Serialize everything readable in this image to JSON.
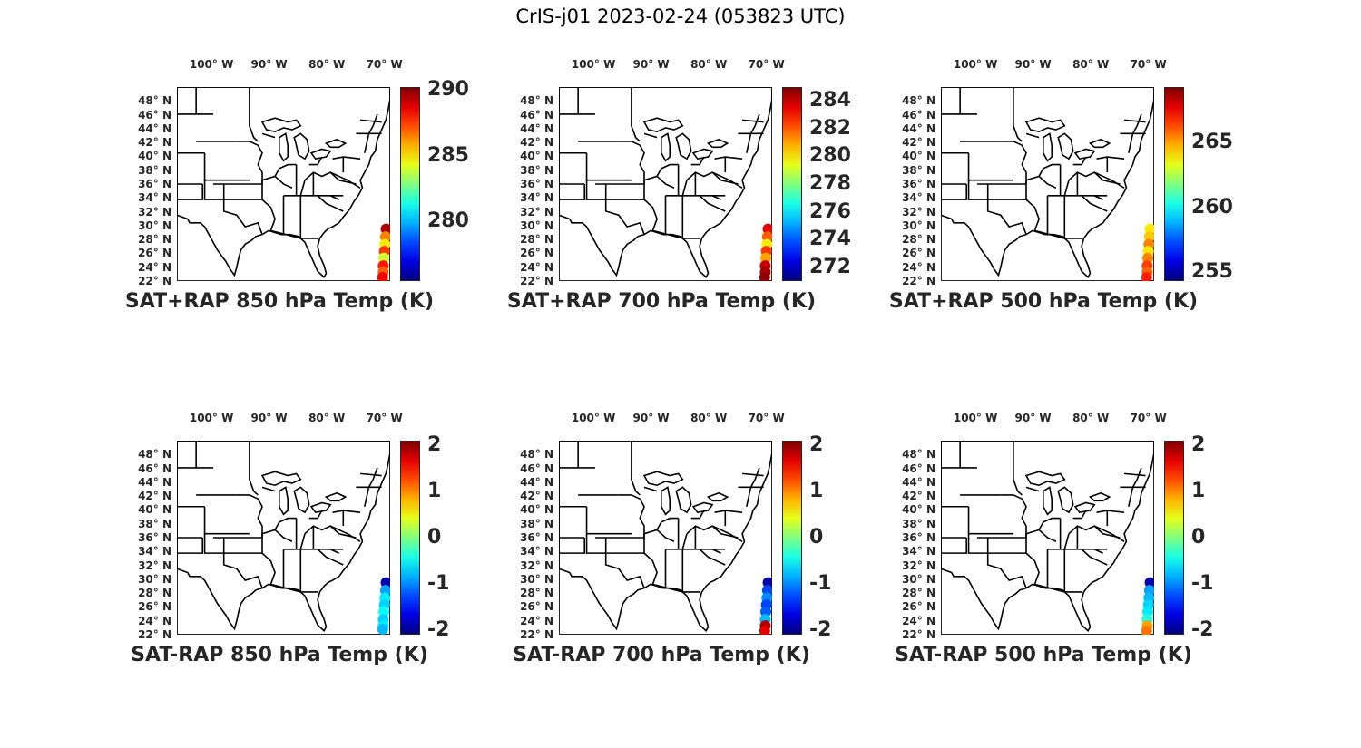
{
  "figure": {
    "title": "CrIS-j01 2023-02-24 (053823 UTC)"
  },
  "axes": {
    "lon_labels": [
      "100° W",
      "90° W",
      "80° W",
      "70° W"
    ],
    "lat_labels": [
      "48° N",
      "46° N",
      "44° N",
      "42° N",
      "40° N",
      "38° N",
      "36° N",
      "34° N",
      "32° N",
      "30° N",
      "28° N",
      "26° N",
      "24° N",
      "22° N"
    ],
    "lon_range": [
      -106,
      -69
    ],
    "lat_range": [
      22,
      50
    ],
    "colormap": "jet"
  },
  "panels": [
    {
      "title": "SAT+RAP 850 hPa Temp (K)",
      "colorbar": {
        "min": 275.5,
        "max": 290.2,
        "ticks": [
          "290",
          "285",
          "280"
        ],
        "tick_values": [
          290,
          285,
          280
        ]
      },
      "points": [
        {
          "lon": -69.7,
          "lat": 29.5,
          "value": 289.5
        },
        {
          "lon": -69.8,
          "lat": 28.4,
          "value": 286.5
        },
        {
          "lon": -69.9,
          "lat": 27.3,
          "value": 285.0
        },
        {
          "lon": -70.0,
          "lat": 26.3,
          "value": 287.5
        },
        {
          "lon": -70.1,
          "lat": 25.3,
          "value": 284.0
        },
        {
          "lon": -70.2,
          "lat": 24.2,
          "value": 288.0
        },
        {
          "lon": -70.2,
          "lat": 23.3,
          "value": 287.0
        },
        {
          "lon": -70.3,
          "lat": 22.3,
          "value": 288.5
        }
      ]
    },
    {
      "title": "SAT+RAP 700 hPa Temp (K)",
      "colorbar": {
        "min": 271.0,
        "max": 285.0,
        "ticks": [
          "284",
          "282",
          "280",
          "278",
          "276",
          "274",
          "272"
        ],
        "tick_values": [
          284,
          282,
          280,
          278,
          276,
          274,
          272
        ]
      },
      "points": [
        {
          "lon": -69.7,
          "lat": 29.5,
          "value": 283.5
        },
        {
          "lon": -69.8,
          "lat": 28.4,
          "value": 282.0
        },
        {
          "lon": -69.9,
          "lat": 27.3,
          "value": 280.0
        },
        {
          "lon": -70.0,
          "lat": 26.3,
          "value": 282.5
        },
        {
          "lon": -70.1,
          "lat": 25.3,
          "value": 281.0
        },
        {
          "lon": -70.2,
          "lat": 24.2,
          "value": 284.0
        },
        {
          "lon": -70.2,
          "lat": 23.3,
          "value": 284.5
        },
        {
          "lon": -70.3,
          "lat": 22.3,
          "value": 284.8
        }
      ]
    },
    {
      "title": "SAT+RAP 500 hPa Temp (K)",
      "colorbar": {
        "min": 254.3,
        "max": 269.3,
        "ticks": [
          "265",
          "260",
          "255"
        ],
        "tick_values": [
          265,
          260,
          255
        ]
      },
      "points": [
        {
          "lon": -69.7,
          "lat": 29.5,
          "value": 264.0
        },
        {
          "lon": -69.8,
          "lat": 28.4,
          "value": 264.5
        },
        {
          "lon": -69.9,
          "lat": 27.3,
          "value": 265.5
        },
        {
          "lon": -70.0,
          "lat": 26.3,
          "value": 264.0
        },
        {
          "lon": -70.1,
          "lat": 25.3,
          "value": 265.5
        },
        {
          "lon": -70.2,
          "lat": 24.2,
          "value": 266.5
        },
        {
          "lon": -70.2,
          "lat": 23.3,
          "value": 266.0
        },
        {
          "lon": -70.3,
          "lat": 22.3,
          "value": 267.0
        }
      ]
    },
    {
      "title": "SAT-RAP 850 hPa Temp (K)",
      "colorbar": {
        "min": -2.1,
        "max": 2.1,
        "ticks": [
          "2",
          "1",
          "0",
          "-1",
          "-2"
        ],
        "tick_values": [
          2,
          1,
          0,
          -1,
          -2
        ]
      },
      "points": [
        {
          "lon": -69.7,
          "lat": 29.5,
          "value": -1.9
        },
        {
          "lon": -69.8,
          "lat": 28.4,
          "value": -0.9
        },
        {
          "lon": -69.9,
          "lat": 27.3,
          "value": -0.6
        },
        {
          "lon": -70.0,
          "lat": 26.3,
          "value": -0.7
        },
        {
          "lon": -70.1,
          "lat": 25.3,
          "value": -0.5
        },
        {
          "lon": -70.2,
          "lat": 24.2,
          "value": -0.7
        },
        {
          "lon": -70.2,
          "lat": 23.3,
          "value": -0.6
        },
        {
          "lon": -70.3,
          "lat": 22.8,
          "value": -0.8
        }
      ]
    },
    {
      "title": "SAT-RAP 700 hPa Temp (K)",
      "colorbar": {
        "min": -2.1,
        "max": 2.1,
        "ticks": [
          "2",
          "1",
          "0",
          "-1",
          "-2"
        ],
        "tick_values": [
          2,
          1,
          0,
          -1,
          -2
        ]
      },
      "points": [
        {
          "lon": -69.7,
          "lat": 29.5,
          "value": -1.9
        },
        {
          "lon": -69.8,
          "lat": 28.4,
          "value": -1.3
        },
        {
          "lon": -69.9,
          "lat": 27.3,
          "value": -1.0
        },
        {
          "lon": -70.0,
          "lat": 26.3,
          "value": -1.3
        },
        {
          "lon": -70.1,
          "lat": 25.3,
          "value": -1.2
        },
        {
          "lon": -70.2,
          "lat": 24.2,
          "value": -0.8
        },
        {
          "lon": -70.2,
          "lat": 23.3,
          "value": 1.9
        },
        {
          "lon": -70.3,
          "lat": 22.3,
          "value": 1.7
        }
      ]
    },
    {
      "title": "SAT-RAP 500 hPa Temp (K)",
      "colorbar": {
        "min": -2.1,
        "max": 2.1,
        "ticks": [
          "2",
          "1",
          "0",
          "-1",
          "-2"
        ],
        "tick_values": [
          2,
          1,
          0,
          -1,
          -2
        ]
      },
      "points": [
        {
          "lon": -69.7,
          "lat": 29.5,
          "value": -1.9
        },
        {
          "lon": -69.8,
          "lat": 28.4,
          "value": -0.9
        },
        {
          "lon": -69.9,
          "lat": 27.3,
          "value": -0.8
        },
        {
          "lon": -70.0,
          "lat": 26.3,
          "value": -0.7
        },
        {
          "lon": -70.1,
          "lat": 25.3,
          "value": -0.6
        },
        {
          "lon": -70.2,
          "lat": 24.2,
          "value": -0.4
        },
        {
          "lon": -70.2,
          "lat": 23.3,
          "value": 0.9
        },
        {
          "lon": -70.3,
          "lat": 22.3,
          "value": 1.1
        }
      ]
    }
  ]
}
